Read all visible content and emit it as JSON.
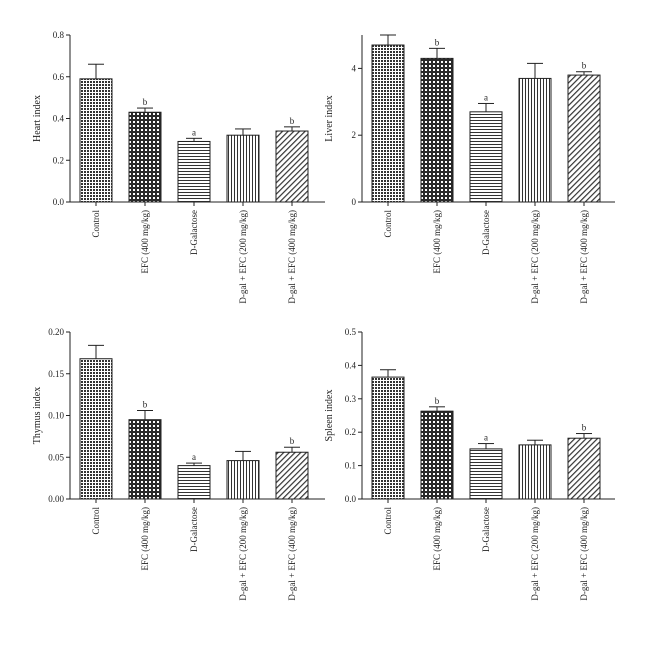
{
  "chart_data": [
    {
      "type": "bar",
      "ylabel": "Heart index",
      "ylim": [
        0,
        0.8
      ],
      "yticks": [
        "0.0",
        "0.2",
        "0.4",
        "0.6",
        "0.8"
      ],
      "categories": [
        "Control",
        "EFC (400 mg/kg)",
        "D-Galactose",
        "D-gal + EFC (200 mg/kg)",
        "D-gal + EFC (400 mg/kg)"
      ],
      "values": [
        0.59,
        0.43,
        0.29,
        0.32,
        0.34
      ],
      "errors": [
        0.07,
        0.02,
        0.015,
        0.03,
        0.02
      ],
      "annotations": [
        "",
        "b",
        "a",
        "",
        "b"
      ],
      "patterns": [
        "dense-cross",
        "dot-grid",
        "horizontal",
        "vertical",
        "diagonal"
      ]
    },
    {
      "type": "bar",
      "ylabel": "Liver index",
      "ylim": [
        0,
        5
      ],
      "yticks": [
        "0",
        "2",
        "4"
      ],
      "categories": [
        "Control",
        "EFC (400 mg/kg)",
        "D-Galactose",
        "D-gal + EFC (200 mg/kg)",
        "D-gal + EFC (400 mg/kg)"
      ],
      "values": [
        4.7,
        4.3,
        2.7,
        3.7,
        3.8
      ],
      "errors": [
        0.3,
        0.3,
        0.25,
        0.45,
        0.1
      ],
      "annotations": [
        "",
        "b",
        "a",
        "",
        "b"
      ],
      "patterns": [
        "dense-cross",
        "dot-grid",
        "horizontal",
        "vertical",
        "diagonal"
      ]
    },
    {
      "type": "bar",
      "ylabel": "Thymus index",
      "ylim": [
        0,
        0.2
      ],
      "yticks": [
        "0.00",
        "0.05",
        "0.10",
        "0.15",
        "0.20"
      ],
      "categories": [
        "Control",
        "EFC (400 mg/kg)",
        "D-Galactose",
        "D-gal + EFC (200 mg/kg)",
        "D-gal + EFC (400 mg/kg)"
      ],
      "values": [
        0.168,
        0.095,
        0.04,
        0.046,
        0.056
      ],
      "errors": [
        0.016,
        0.011,
        0.003,
        0.011,
        0.006
      ],
      "annotations": [
        "",
        "b",
        "a",
        "",
        "b"
      ],
      "patterns": [
        "dense-cross",
        "dot-grid",
        "horizontal",
        "vertical",
        "diagonal"
      ]
    },
    {
      "type": "bar",
      "ylabel": "Spleen index",
      "ylim": [
        0,
        0.5
      ],
      "yticks": [
        "0.0",
        "0.1",
        "0.2",
        "0.3",
        "0.4",
        "0.5"
      ],
      "categories": [
        "Control",
        "EFC (400 mg/kg)",
        "D-Galactose",
        "D-gal + EFC (200 mg/kg)",
        "D-gal + EFC (400 mg/kg)"
      ],
      "values": [
        0.365,
        0.263,
        0.15,
        0.162,
        0.182
      ],
      "errors": [
        0.022,
        0.013,
        0.016,
        0.014,
        0.014
      ],
      "annotations": [
        "",
        "b",
        "a",
        "",
        "b"
      ],
      "patterns": [
        "dense-cross",
        "dot-grid",
        "horizontal",
        "vertical",
        "diagonal"
      ]
    }
  ]
}
